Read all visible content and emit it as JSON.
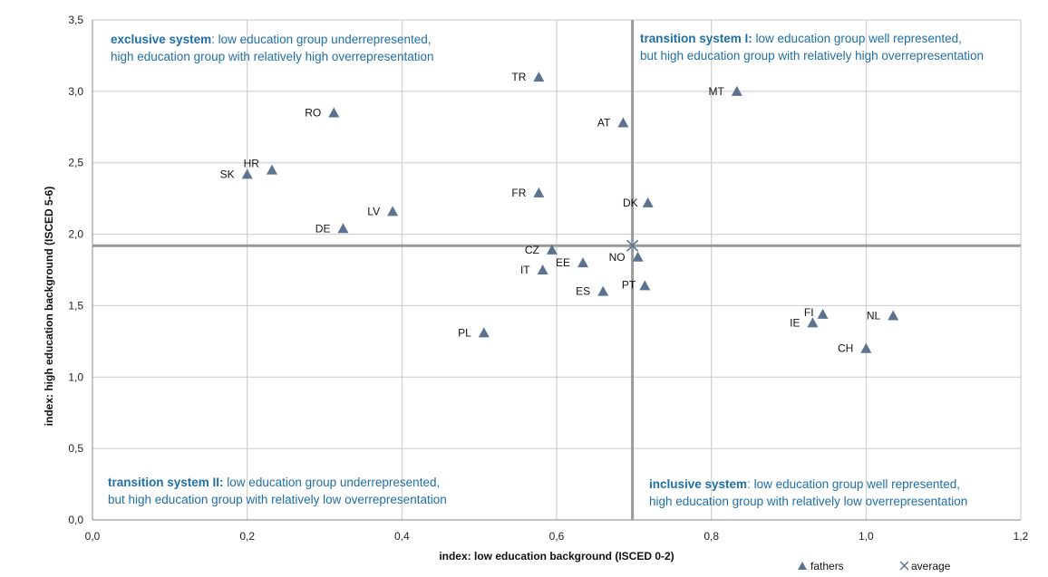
{
  "chart_data": {
    "type": "scatter",
    "title": "",
    "xlabel": "index: low education background (ISCED 0-2)",
    "ylabel": "index: high education background (ISCED 5-6)",
    "xlim": [
      0,
      1.2
    ],
    "ylim": [
      0,
      3.5
    ],
    "x_ticks": [
      "0,0",
      "0,2",
      "0,4",
      "0,6",
      "0,8",
      "1,0",
      "1,2"
    ],
    "y_ticks": [
      "0,0",
      "0,5",
      "1,0",
      "1,5",
      "2,0",
      "2,5",
      "3,0",
      "3,5"
    ],
    "grid": true,
    "legend_position": "bottom-right",
    "series": [
      {
        "name": "fathers",
        "marker": "triangle",
        "color": "#5b7390",
        "points": [
          {
            "label": "TR",
            "x": 0.577,
            "y": 3.1
          },
          {
            "label": "MT",
            "x": 0.833,
            "y": 3.0
          },
          {
            "label": "RO",
            "x": 0.312,
            "y": 2.85
          },
          {
            "label": "AT",
            "x": 0.686,
            "y": 2.78
          },
          {
            "label": "HR",
            "x": 0.232,
            "y": 2.45
          },
          {
            "label": "SK",
            "x": 0.2,
            "y": 2.42
          },
          {
            "label": "FR",
            "x": 0.577,
            "y": 2.29
          },
          {
            "label": "DK",
            "x": 0.718,
            "y": 2.22
          },
          {
            "label": "LV",
            "x": 0.388,
            "y": 2.16
          },
          {
            "label": "DE",
            "x": 0.324,
            "y": 2.04
          },
          {
            "label": "CZ",
            "x": 0.594,
            "y": 1.89
          },
          {
            "label": "NO",
            "x": 0.705,
            "y": 1.84
          },
          {
            "label": "EE",
            "x": 0.634,
            "y": 1.8
          },
          {
            "label": "IT",
            "x": 0.582,
            "y": 1.75
          },
          {
            "label": "PT",
            "x": 0.714,
            "y": 1.64
          },
          {
            "label": "ES",
            "x": 0.66,
            "y": 1.6
          },
          {
            "label": "FI",
            "x": 0.944,
            "y": 1.44
          },
          {
            "label": "NL",
            "x": 1.035,
            "y": 1.43
          },
          {
            "label": "IE",
            "x": 0.931,
            "y": 1.38
          },
          {
            "label": "PL",
            "x": 0.506,
            "y": 1.31
          },
          {
            "label": "CH",
            "x": 1.0,
            "y": 1.2
          }
        ]
      },
      {
        "name": "average",
        "marker": "x",
        "color": "#5b7390",
        "points": [
          {
            "x": 0.698,
            "y": 1.92
          }
        ]
      }
    ],
    "reference_lines": {
      "x": 0.698,
      "y": 1.92,
      "color": "#999999"
    },
    "quadrants": [
      {
        "id": "top-left",
        "title": "exclusive system",
        "title_suffix": ":",
        "line1": " low education group underrepresented,",
        "line2": "high education group with relatively high overrepresentation"
      },
      {
        "id": "top-right",
        "title": "transition system I:",
        "title_suffix": "",
        "line1": " low education group well represented,",
        "line2": "but high education group with relatively high overrepresentation"
      },
      {
        "id": "bottom-left",
        "title": "transition system II:",
        "title_suffix": "",
        "line1": " low education group underrepresented,",
        "line2": "but high education group with relatively low overrepresentation"
      },
      {
        "id": "bottom-right",
        "title": "inclusive system",
        "title_suffix": ":",
        "line1": " low education group well represented,",
        "line2": "high education group with relatively low overrepresentation"
      }
    ],
    "text_color": "#1f6fa8"
  }
}
